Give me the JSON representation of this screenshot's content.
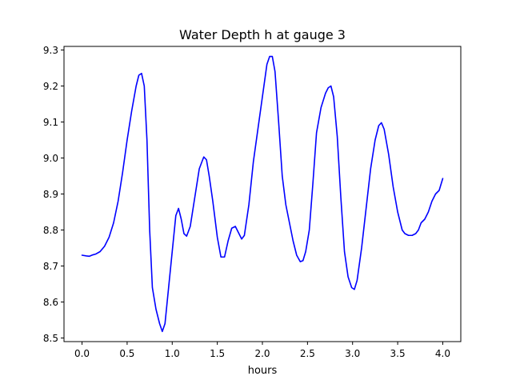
{
  "chart_data": {
    "type": "line",
    "title": "Water Depth h at gauge 3",
    "xlabel": "hours",
    "ylabel": "",
    "xlim": [
      -0.2,
      4.2
    ],
    "ylim": [
      8.49,
      9.31
    ],
    "xticks": [
      0.0,
      0.5,
      1.0,
      1.5,
      2.0,
      2.5,
      3.0,
      3.5,
      4.0
    ],
    "xtick_labels": [
      "0.0",
      "0.5",
      "1.0",
      "1.5",
      "2.0",
      "2.5",
      "3.0",
      "3.5",
      "4.0"
    ],
    "yticks": [
      8.5,
      8.6,
      8.7,
      8.8,
      8.9,
      9.0,
      9.1,
      9.2,
      9.3
    ],
    "ytick_labels": [
      "8.5",
      "8.6",
      "8.7",
      "8.8",
      "8.9",
      "9.0",
      "9.1",
      "9.2",
      "9.3"
    ],
    "grid": false,
    "legend": false,
    "series": [
      {
        "color": "#0000ff",
        "points": [
          [
            0.0,
            8.73
          ],
          [
            0.05,
            8.728
          ],
          [
            0.08,
            8.727
          ],
          [
            0.12,
            8.731
          ],
          [
            0.15,
            8.733
          ],
          [
            0.2,
            8.74
          ],
          [
            0.25,
            8.755
          ],
          [
            0.3,
            8.78
          ],
          [
            0.35,
            8.82
          ],
          [
            0.4,
            8.88
          ],
          [
            0.45,
            8.96
          ],
          [
            0.5,
            9.05
          ],
          [
            0.55,
            9.13
          ],
          [
            0.6,
            9.2
          ],
          [
            0.63,
            9.23
          ],
          [
            0.66,
            9.235
          ],
          [
            0.69,
            9.2
          ],
          [
            0.72,
            9.05
          ],
          [
            0.75,
            8.8
          ],
          [
            0.78,
            8.64
          ],
          [
            0.82,
            8.58
          ],
          [
            0.86,
            8.54
          ],
          [
            0.89,
            8.518
          ],
          [
            0.92,
            8.54
          ],
          [
            0.96,
            8.64
          ],
          [
            1.0,
            8.74
          ],
          [
            1.04,
            8.84
          ],
          [
            1.07,
            8.86
          ],
          [
            1.1,
            8.83
          ],
          [
            1.13,
            8.79
          ],
          [
            1.16,
            8.783
          ],
          [
            1.2,
            8.81
          ],
          [
            1.25,
            8.89
          ],
          [
            1.3,
            8.97
          ],
          [
            1.33,
            8.99
          ],
          [
            1.35,
            9.003
          ],
          [
            1.38,
            8.995
          ],
          [
            1.41,
            8.95
          ],
          [
            1.45,
            8.88
          ],
          [
            1.5,
            8.78
          ],
          [
            1.54,
            8.725
          ],
          [
            1.58,
            8.725
          ],
          [
            1.62,
            8.77
          ],
          [
            1.66,
            8.805
          ],
          [
            1.7,
            8.81
          ],
          [
            1.74,
            8.79
          ],
          [
            1.77,
            8.775
          ],
          [
            1.8,
            8.785
          ],
          [
            1.85,
            8.87
          ],
          [
            1.9,
            8.99
          ],
          [
            1.95,
            9.08
          ],
          [
            2.0,
            9.17
          ],
          [
            2.05,
            9.26
          ],
          [
            2.08,
            9.282
          ],
          [
            2.11,
            9.282
          ],
          [
            2.14,
            9.24
          ],
          [
            2.18,
            9.1
          ],
          [
            2.22,
            8.95
          ],
          [
            2.26,
            8.87
          ],
          [
            2.3,
            8.82
          ],
          [
            2.34,
            8.77
          ],
          [
            2.38,
            8.73
          ],
          [
            2.42,
            8.712
          ],
          [
            2.45,
            8.715
          ],
          [
            2.48,
            8.74
          ],
          [
            2.52,
            8.8
          ],
          [
            2.56,
            8.93
          ],
          [
            2.6,
            9.07
          ],
          [
            2.65,
            9.14
          ],
          [
            2.7,
            9.18
          ],
          [
            2.73,
            9.195
          ],
          [
            2.76,
            9.2
          ],
          [
            2.79,
            9.17
          ],
          [
            2.83,
            9.06
          ],
          [
            2.87,
            8.89
          ],
          [
            2.91,
            8.74
          ],
          [
            2.95,
            8.67
          ],
          [
            2.99,
            8.64
          ],
          [
            3.02,
            8.635
          ],
          [
            3.05,
            8.66
          ],
          [
            3.1,
            8.75
          ],
          [
            3.15,
            8.86
          ],
          [
            3.2,
            8.97
          ],
          [
            3.25,
            9.05
          ],
          [
            3.29,
            9.09
          ],
          [
            3.32,
            9.098
          ],
          [
            3.35,
            9.08
          ],
          [
            3.4,
            9.01
          ],
          [
            3.45,
            8.92
          ],
          [
            3.5,
            8.85
          ],
          [
            3.55,
            8.8
          ],
          [
            3.58,
            8.79
          ],
          [
            3.62,
            8.785
          ],
          [
            3.66,
            8.785
          ],
          [
            3.7,
            8.79
          ],
          [
            3.73,
            8.8
          ],
          [
            3.76,
            8.82
          ],
          [
            3.8,
            8.83
          ],
          [
            3.84,
            8.85
          ],
          [
            3.88,
            8.88
          ],
          [
            3.92,
            8.9
          ],
          [
            3.96,
            8.91
          ],
          [
            4.0,
            8.943
          ]
        ]
      }
    ]
  }
}
